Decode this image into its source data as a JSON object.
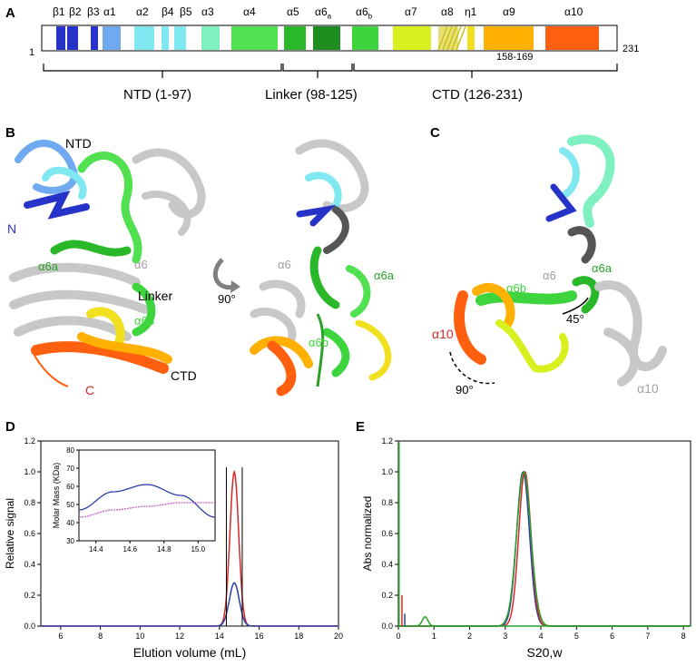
{
  "panels": {
    "a": "A",
    "b": "B",
    "c": "C",
    "d": "D",
    "e": "E"
  },
  "topology": {
    "start": "1",
    "end": "231",
    "insert": "158-169",
    "elements": [
      {
        "label": "β1",
        "color": "#2632c8"
      },
      {
        "label": "β2",
        "color": "#2632c8"
      },
      {
        "label": "β3",
        "color": "#2632c8"
      },
      {
        "label": "α1",
        "color": "#6faaf0"
      },
      {
        "label": "α2",
        "color": "#7fe8f0"
      },
      {
        "label": "β4",
        "color": "#7fe8f0"
      },
      {
        "label": "β5",
        "color": "#7fe8f0"
      },
      {
        "label": "α3",
        "color": "#7ff0c0"
      },
      {
        "label": "α4",
        "color": "#50e050"
      },
      {
        "label": "α5",
        "color": "#2ab82a"
      },
      {
        "label": "α6a",
        "color": "#1e8c1e"
      },
      {
        "label": "α6b",
        "color": "#3ed43e"
      },
      {
        "label": "α7",
        "color": "#d8f020"
      },
      {
        "label": "α8",
        "color": "#e8e070"
      },
      {
        "label": "η1",
        "color": "#f0e020"
      },
      {
        "label": "α9",
        "color": "#ffb000"
      },
      {
        "label": "α10",
        "color": "#ff6010"
      }
    ],
    "domains": [
      {
        "label": "NTD (1-97)"
      },
      {
        "label": "Linker (98-125)"
      },
      {
        "label": "CTD (126-231)"
      }
    ]
  },
  "structure_b": {
    "ntd": "NTD",
    "n": "N",
    "c": "C",
    "linker": "Linker",
    "ctd": "CTD",
    "a6": "α6",
    "a6a": "α6a",
    "a6b": "α6b",
    "rotation": "90°",
    "right_a6": "α6",
    "right_a6a": "α6a",
    "right_a6b": "α6b"
  },
  "structure_c": {
    "a6": "α6",
    "a6a": "α6a",
    "a6b": "α6b",
    "a10": "α10",
    "a10_right": "α10",
    "angle1": "45°",
    "angle2": "90°"
  },
  "colors": {
    "red": "#d62828",
    "blue": "#2b3fa8",
    "green": "#2aa02a",
    "magenta": "#c060c0"
  },
  "chart_data": [
    {
      "type": "line",
      "panel": "D",
      "xlabel": "Elution volume (mL)",
      "ylabel": "Relative signal",
      "xlim": [
        5,
        20
      ],
      "ylim": [
        0,
        1.2
      ],
      "x_ticks": [
        "6",
        "8",
        "10",
        "12",
        "14",
        "16",
        "18",
        "20"
      ],
      "y_ticks": [
        "0.0",
        "0.2",
        "0.4",
        "0.6",
        "0.8",
        "1.0",
        "1.2"
      ],
      "series": [
        {
          "color": "#d62828",
          "peak_x": 14.75,
          "peak_y": 1.0,
          "width": 0.22
        },
        {
          "color": "#2b3fa8",
          "peak_x": 14.75,
          "peak_y": 0.28,
          "width": 0.25
        }
      ],
      "markers": [
        14.35,
        15.15
      ],
      "inset": {
        "ylabel": "Molar Mass (KDa)",
        "xlim": [
          14.3,
          15.1
        ],
        "ylim": [
          30,
          80
        ],
        "x_ticks": [
          "14.4",
          "14.6",
          "14.8",
          "15.0"
        ],
        "y_ticks": [
          "30",
          "40",
          "50",
          "60",
          "70",
          "80"
        ],
        "series": [
          {
            "color": "#2b3fa8",
            "x": [
              14.3,
              14.5,
              14.7,
              14.9,
              15.1
            ],
            "y": [
              47,
              57,
              61,
              55,
              43
            ]
          },
          {
            "color": "#c060c0",
            "x": [
              14.3,
              14.5,
              14.7,
              14.9,
              15.1
            ],
            "y": [
              43,
              47,
              49,
              51,
              51
            ]
          }
        ]
      }
    },
    {
      "type": "line",
      "panel": "E",
      "xlabel": "S20,w",
      "ylabel": "Abs normalized",
      "xlim": [
        0,
        8.2
      ],
      "ylim": [
        0,
        1.2
      ],
      "x_ticks": [
        "0",
        "1",
        "2",
        "3",
        "4",
        "5",
        "6",
        "7",
        "8"
      ],
      "y_ticks": [
        "0.0",
        "0.2",
        "0.4",
        "0.6",
        "0.8",
        "1.0",
        "1.2"
      ],
      "series": [
        {
          "color": "#2b3fa8",
          "peak_x": 3.5,
          "peak_y": 1.0,
          "width": 0.18
        },
        {
          "color": "#d62828",
          "peak_x": 3.55,
          "peak_y": 1.0,
          "width": 0.17
        },
        {
          "color": "#2aa02a",
          "peak_x": 3.52,
          "peak_y": 1.0,
          "width": 0.2
        },
        {
          "color": "#2aa02a",
          "peak_x": 0.75,
          "peak_y": 0.06,
          "width": 0.08
        }
      ]
    }
  ]
}
